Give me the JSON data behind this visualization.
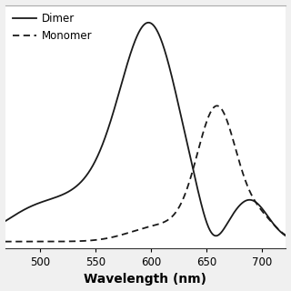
{
  "title": "",
  "xlabel": "Wavelength (nm)",
  "ylabel": "",
  "xlim": [
    468,
    722
  ],
  "ylim": [
    -0.03,
    1.08
  ],
  "background_color": "#f0f0f0",
  "plot_bg": "#ffffff",
  "dimer_color": "#1a1a1a",
  "monomer_color": "#1a1a1a",
  "legend_dimer": "Dimer",
  "legend_monomer": "Monomer",
  "xlabel_fontsize": 10,
  "legend_fontsize": 8.5
}
